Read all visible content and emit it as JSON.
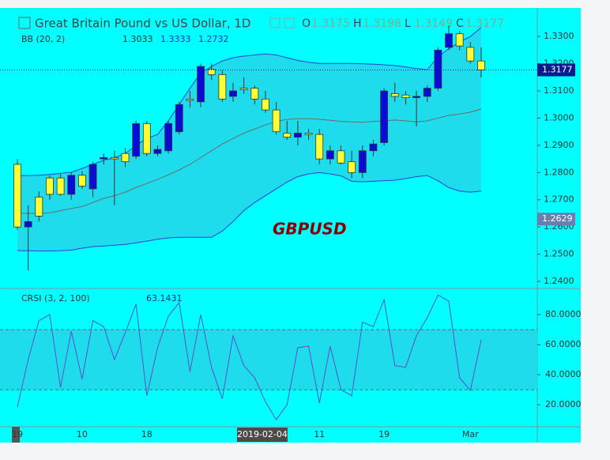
{
  "chart_data": [
    {
      "type": "candlestick",
      "title": "Great Britain Pound vs US Dollar, 1D",
      "ohlc_legend": [
        {
          "label": "O",
          "value": 1.3175
        },
        {
          "label": "H",
          "value": 1.3198
        },
        {
          "label": "L",
          "value": 1.3149
        },
        {
          "label": "C",
          "value": 1.3177
        }
      ],
      "watermark": "GBPUSD",
      "categories": [
        "19",
        null,
        null,
        null,
        null,
        null,
        "10",
        null,
        null,
        null,
        null,
        null,
        "18",
        null,
        null,
        null,
        null,
        null,
        null,
        null,
        null,
        null,
        null,
        "2019-02-04",
        null,
        null,
        null,
        null,
        "11",
        null,
        null,
        null,
        null,
        null,
        "19",
        null,
        null,
        null,
        null,
        null,
        null,
        null,
        "Mar",
        null
      ],
      "open": [
        1.283,
        1.26,
        1.271,
        1.278,
        1.278,
        1.272,
        1.279,
        1.274,
        1.285,
        1.2855,
        1.287,
        1.286,
        1.298,
        1.287,
        1.288,
        1.295,
        1.307,
        1.306,
        1.318,
        1.316,
        1.308,
        1.311,
        1.311,
        1.307,
        1.303,
        1.2945,
        1.293,
        1.2945,
        1.294,
        1.285,
        1.288,
        1.284,
        1.28,
        1.288,
        1.291,
        1.309,
        1.3085,
        1.3075,
        1.308,
        1.311,
        1.326,
        1.331,
        1.326,
        1.321
      ],
      "high": [
        1.285,
        1.268,
        1.273,
        1.279,
        1.2795,
        1.28,
        1.2805,
        1.284,
        1.287,
        1.288,
        1.289,
        1.299,
        1.299,
        1.29,
        1.299,
        1.306,
        1.31,
        1.32,
        1.32,
        1.3175,
        1.313,
        1.315,
        1.312,
        1.31,
        1.306,
        1.299,
        1.299,
        1.296,
        1.296,
        1.29,
        1.29,
        1.288,
        1.29,
        1.292,
        1.311,
        1.313,
        1.31,
        1.31,
        1.312,
        1.326,
        1.334,
        1.332,
        1.328,
        1.326
      ],
      "low": [
        1.259,
        1.244,
        1.262,
        1.27,
        1.2715,
        1.27,
        1.274,
        1.271,
        1.283,
        1.268,
        1.282,
        1.285,
        1.286,
        1.286,
        1.287,
        1.294,
        1.304,
        1.304,
        1.314,
        1.306,
        1.306,
        1.309,
        1.305,
        1.302,
        1.294,
        1.292,
        1.29,
        1.292,
        1.283,
        1.283,
        1.283,
        1.278,
        1.278,
        1.286,
        1.29,
        1.306,
        1.305,
        1.297,
        1.306,
        1.31,
        1.325,
        1.325,
        1.32,
        1.3149
      ],
      "close": [
        1.26,
        1.262,
        1.264,
        1.272,
        1.272,
        1.279,
        1.275,
        1.283,
        1.2855,
        1.285,
        1.284,
        1.298,
        1.287,
        1.2885,
        1.298,
        1.305,
        1.3065,
        1.319,
        1.316,
        1.307,
        1.31,
        1.3105,
        1.307,
        1.303,
        1.295,
        1.293,
        1.2945,
        1.294,
        1.285,
        1.288,
        1.2835,
        1.28,
        1.288,
        1.2905,
        1.31,
        1.308,
        1.3075,
        1.308,
        1.311,
        1.325,
        1.331,
        1.3265,
        1.321,
        1.3177
      ],
      "up_color": "#0b0bd6",
      "down_color": "#ffff33",
      "bb": {
        "label": "BB (20, 2)",
        "legend_values": [
          1.3033,
          1.3333,
          1.2732
        ],
        "basis": [
          1.265,
          1.265,
          1.265,
          1.2652,
          1.266,
          1.2668,
          1.2675,
          1.269,
          1.2705,
          1.2715,
          1.2728,
          1.2745,
          1.276,
          1.2775,
          1.2792,
          1.281,
          1.283,
          1.2855,
          1.288,
          1.2905,
          1.2925,
          1.2945,
          1.296,
          1.2975,
          1.2988,
          1.2995,
          1.2998,
          1.2998,
          1.2996,
          1.2992,
          1.2988,
          1.2986,
          1.2985,
          1.2988,
          1.299,
          1.2993,
          1.299,
          1.2986,
          1.299,
          1.3,
          1.301,
          1.3015,
          1.3022,
          1.3033
        ],
        "upper": [
          1.2789,
          1.2789,
          1.279,
          1.2793,
          1.2797,
          1.2801,
          1.2815,
          1.283,
          1.2845,
          1.2855,
          1.287,
          1.29,
          1.2925,
          1.294,
          1.299,
          1.305,
          1.311,
          1.3165,
          1.319,
          1.321,
          1.3222,
          1.3228,
          1.3232,
          1.3236,
          1.3232,
          1.3222,
          1.3212,
          1.3205,
          1.3201,
          1.3201,
          1.3201,
          1.3201,
          1.32,
          1.3198,
          1.3196,
          1.3193,
          1.3188,
          1.3182,
          1.3178,
          1.3225,
          1.3255,
          1.328,
          1.33,
          1.3333
        ],
        "lower": [
          1.2513,
          1.2513,
          1.2512,
          1.2512,
          1.2513,
          1.2515,
          1.2522,
          1.2528,
          1.253,
          1.2533,
          1.2536,
          1.2542,
          1.2548,
          1.2555,
          1.256,
          1.2562,
          1.2562,
          1.2562,
          1.2562,
          1.2585,
          1.262,
          1.266,
          1.269,
          1.2715,
          1.274,
          1.2765,
          1.2785,
          1.2795,
          1.28,
          1.2795,
          1.2788,
          1.2768,
          1.2766,
          1.2768,
          1.277,
          1.2772,
          1.2778,
          1.2785,
          1.2789,
          1.277,
          1.2745,
          1.2732,
          1.2728,
          1.2732
        ],
        "basis_color": "#6b6b6b",
        "band_color": "#2f3fe0",
        "fill_color": "#1fdcec"
      },
      "last_price": 1.3177,
      "last_price_color": "#0b1a8c",
      "marker_price": 1.2629,
      "marker_color": "#6a7fb0",
      "ylim": [
        1.2374,
        1.3405
      ],
      "yticks": [
        {
          "value": 1.24,
          "label": "1.2400"
        },
        {
          "value": 1.25,
          "label": "1.2500"
        },
        {
          "value": 1.26,
          "label": "1.2600"
        },
        {
          "value": 1.27,
          "label": "1.2700"
        },
        {
          "value": 1.28,
          "label": "1.2800"
        },
        {
          "value": 1.29,
          "label": "1.2900"
        },
        {
          "value": 1.3,
          "label": "1.3000"
        },
        {
          "value": 1.31,
          "label": "1.3100"
        },
        {
          "value": 1.32,
          "label": "1.3200"
        },
        {
          "value": 1.33,
          "label": "1.3300"
        }
      ]
    },
    {
      "type": "line",
      "title": "CRSI (3, 2, 100)",
      "legend_value": 63.1431,
      "color": "#5a4fcf",
      "values": [
        18.4,
        50,
        76,
        80,
        31.6,
        69,
        37,
        76,
        72,
        50,
        68,
        87,
        26,
        58,
        79,
        88,
        42,
        80,
        45,
        24,
        66,
        46,
        38,
        22,
        10,
        20,
        58,
        59,
        21,
        59,
        30,
        26,
        75,
        72,
        90,
        46,
        45,
        66,
        78,
        93,
        89,
        38,
        29.5,
        63.1431
      ],
      "levels": [
        70,
        30
      ],
      "fill_color": "#1fdcec",
      "ylim": [
        5.3,
        97.4
      ],
      "yticks": [
        {
          "value": 20,
          "label": "20.0000"
        },
        {
          "value": 40,
          "label": "40.0000"
        },
        {
          "value": 60,
          "label": "60.0000"
        },
        {
          "value": 80,
          "label": "80.0000"
        }
      ]
    }
  ]
}
